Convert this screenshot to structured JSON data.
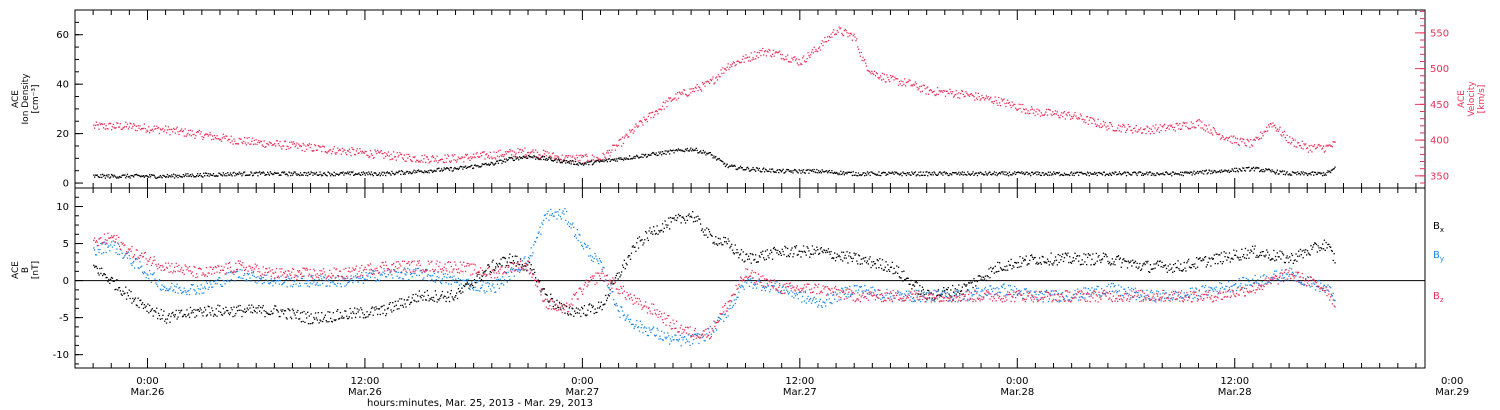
{
  "chart_data": [
    {
      "type": "scatter",
      "title": "",
      "ylabel_left": [
        "ACE",
        "Ion Density",
        "[cm⁻³]"
      ],
      "ylabel_right": [
        "ACE",
        "Velocity",
        "[km/s]"
      ],
      "ylim_left": [
        -2,
        70
      ],
      "ylim_right": [
        333,
        582
      ],
      "yticks_left": [
        0,
        20,
        40,
        60
      ],
      "yticks_right": [
        350,
        400,
        450,
        500,
        550
      ],
      "series": [
        {
          "name": "",
          "axis": "left",
          "color": "#000000",
          "x": [
            0,
            2,
            4,
            6,
            8,
            10,
            12,
            14,
            16,
            18,
            20,
            21,
            22,
            23,
            24,
            25,
            26,
            27,
            28,
            29,
            30,
            31,
            32,
            33,
            34,
            35,
            36,
            38,
            40,
            42,
            44,
            46,
            48,
            50,
            52,
            54,
            56,
            58,
            60,
            62,
            64,
            66,
            68,
            68.5
          ],
          "y": [
            3,
            3,
            3,
            3.5,
            4,
            4,
            4,
            4,
            4,
            5,
            6,
            7,
            8,
            10,
            11,
            10,
            9,
            8,
            9,
            10,
            11,
            12,
            13,
            14,
            12,
            7,
            6,
            5,
            5,
            4,
            4,
            4,
            4,
            4,
            4,
            4,
            4,
            4,
            4,
            5,
            6,
            4,
            4,
            6
          ]
        },
        {
          "name": "",
          "axis": "right",
          "color": "#e8315a",
          "x": [
            0,
            2,
            4,
            6,
            8,
            10,
            12,
            14,
            16,
            18,
            20,
            22,
            24,
            26,
            28,
            29,
            30,
            31,
            32,
            33,
            34,
            35,
            36,
            37,
            38,
            39,
            40,
            41,
            42,
            42.5,
            43,
            44,
            45,
            46,
            48,
            50,
            52,
            54,
            56,
            58,
            60,
            61,
            62,
            63,
            64,
            65,
            66,
            67,
            68,
            68.5
          ],
          "y": [
            420,
            420,
            415,
            408,
            400,
            395,
            390,
            385,
            380,
            375,
            375,
            380,
            385,
            375,
            375,
            395,
            420,
            440,
            460,
            470,
            480,
            505,
            515,
            525,
            520,
            510,
            530,
            555,
            545,
            510,
            495,
            485,
            480,
            470,
            465,
            455,
            440,
            435,
            420,
            415,
            420,
            425,
            410,
            400,
            395,
            425,
            400,
            390,
            390,
            395
          ]
        }
      ]
    },
    {
      "type": "scatter",
      "title": "",
      "ylabel_left": [
        "ACE",
        "B",
        "[nT]"
      ],
      "ylim": [
        -11.8,
        12.5
      ],
      "yticks": [
        -10,
        -5,
        0,
        5,
        10
      ],
      "zero_line": true,
      "series": [
        {
          "name": "B",
          "subscript": "x",
          "color": "#000000",
          "x": [
            0,
            2,
            4,
            6,
            8,
            10,
            12,
            14,
            16,
            18,
            20,
            22,
            23,
            24,
            25,
            26,
            27,
            28,
            29,
            30,
            31,
            32,
            33,
            34,
            35,
            36,
            38,
            40,
            42,
            44,
            46,
            48,
            50,
            52,
            54,
            56,
            58,
            60,
            62,
            64,
            66,
            68,
            68.5
          ],
          "y": [
            2,
            -2,
            -5,
            -4,
            -4,
            -4,
            -5,
            -4.5,
            -4,
            -2,
            -2,
            2,
            3,
            2,
            -2,
            -4,
            -4,
            -3.5,
            1,
            5,
            7,
            8,
            9,
            6,
            5,
            3,
            4,
            4,
            3,
            2,
            -2,
            -1,
            2,
            3,
            3,
            3,
            2,
            2,
            3,
            4,
            3,
            5,
            3
          ]
        },
        {
          "name": "B",
          "subscript": "y",
          "color": "#1e88e5",
          "x": [
            0,
            1,
            2,
            4,
            6,
            8,
            10,
            12,
            14,
            16,
            18,
            20,
            22,
            23,
            24,
            25,
            26,
            27,
            28,
            29,
            30,
            31,
            32,
            33,
            34,
            35,
            36,
            38,
            40,
            42,
            44,
            46,
            48,
            50,
            52,
            54,
            56,
            58,
            60,
            62,
            64,
            66,
            68,
            68.5
          ],
          "y": [
            4,
            5,
            3,
            -1,
            -1,
            1,
            0,
            0,
            0,
            1,
            1,
            0,
            -1,
            1,
            3,
            9,
            9,
            5,
            2,
            -4,
            -6,
            -7,
            -8,
            -8,
            -7,
            -4,
            0,
            -1,
            -3,
            -1,
            -2,
            -2,
            -2,
            -1,
            -2,
            -2,
            -1,
            -2,
            -2,
            -1,
            0,
            1,
            -1,
            -2
          ]
        },
        {
          "name": "B",
          "subscript": "z",
          "color": "#e8315a",
          "x": [
            0,
            1,
            2,
            4,
            6,
            8,
            10,
            12,
            14,
            16,
            18,
            20,
            22,
            23,
            24,
            25,
            26,
            27,
            28,
            29,
            30,
            31,
            32,
            33,
            34,
            35,
            36,
            38,
            40,
            42,
            44,
            46,
            48,
            50,
            52,
            54,
            56,
            58,
            60,
            62,
            64,
            66,
            68,
            68.5
          ],
          "y": [
            5,
            6,
            4,
            2,
            1,
            2,
            1,
            1,
            1,
            2,
            2,
            2,
            1,
            2,
            2,
            -3,
            -4,
            -1,
            1,
            -1,
            -3,
            -4,
            -6,
            -7,
            -7,
            -3,
            1,
            -1,
            -1,
            -2,
            -2,
            -2,
            -2,
            -2,
            -2,
            -2,
            -2,
            -2,
            -2,
            -2,
            -1,
            1,
            -1,
            -3
          ]
        }
      ]
    }
  ],
  "x_axis": {
    "xlim_hours_since_mar25_2100": [
      -1,
      73.5
    ],
    "tick_labels": [
      {
        "x": 3,
        "time": "0:00",
        "date": "Mar.26"
      },
      {
        "x": 15,
        "time": "12:00",
        "date": "Mar.26"
      },
      {
        "x": 27,
        "time": "0:00",
        "date": "Mar.27"
      },
      {
        "x": 39,
        "time": "12:00",
        "date": "Mar.27"
      },
      {
        "x": 51,
        "time": "0:00",
        "date": "Mar.28"
      },
      {
        "x": 63,
        "time": "12:00",
        "date": "Mar.28"
      },
      {
        "x": 75,
        "time": "0:00",
        "date": "Mar.29"
      }
    ],
    "xlabel": "hours:minutes, Mar. 25, 2013 - Mar. 29, 2013"
  }
}
